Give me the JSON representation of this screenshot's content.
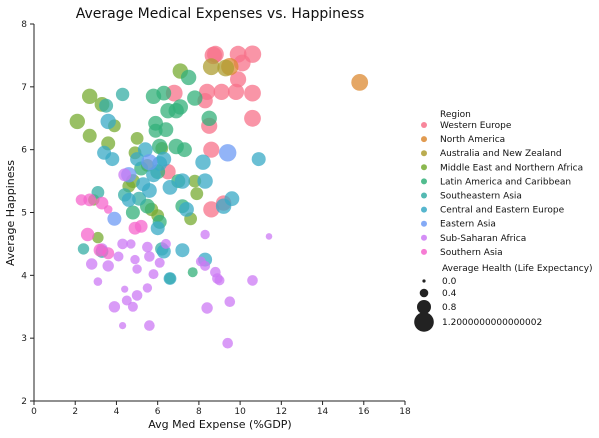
{
  "chart_data": {
    "type": "scatter",
    "title": "Average Medical Expenses vs. Happiness",
    "xlabel": "Avg Med Expense (%GDP)",
    "ylabel": "Average Happiness",
    "xlim": [
      0,
      18
    ],
    "ylim": [
      2,
      8
    ],
    "xticks": [
      "0",
      "2",
      "4",
      "6",
      "8",
      "10",
      "12",
      "14",
      "16",
      "18"
    ],
    "yticks": [
      "2",
      "3",
      "4",
      "5",
      "6",
      "7",
      "8"
    ],
    "grid": false,
    "legend": {
      "placement": "right",
      "hue_title": "Region",
      "size_title": "Average Health (Life Expectancy)",
      "size_entries": [
        {
          "label": "0.0",
          "value": 0.0
        },
        {
          "label": "0.4",
          "value": 0.4
        },
        {
          "label": "0.8",
          "value": 0.8
        },
        {
          "label": "1.2000000000000002",
          "value": 1.2
        }
      ]
    },
    "series": [
      {
        "name": "Western Europe",
        "color": "#f77189",
        "points": [
          [
            8.7,
            7.5,
            1.05
          ],
          [
            8.8,
            7.52,
            1.0
          ],
          [
            9.9,
            7.52,
            1.0
          ],
          [
            10.6,
            7.52,
            1.05
          ],
          [
            10.1,
            7.38,
            1.0
          ],
          [
            9.9,
            7.12,
            0.95
          ],
          [
            8.4,
            6.92,
            0.95
          ],
          [
            9.1,
            6.92,
            0.95
          ],
          [
            9.8,
            6.92,
            0.95
          ],
          [
            10.6,
            6.9,
            1.0
          ],
          [
            6.8,
            6.9,
            1.0
          ],
          [
            8.3,
            6.78,
            0.9
          ],
          [
            10.6,
            6.5,
            1.0
          ],
          [
            8.5,
            6.38,
            0.95
          ],
          [
            8.6,
            6.0,
            0.95
          ],
          [
            6.5,
            5.65,
            0.9
          ],
          [
            8.6,
            5.05,
            0.95
          ],
          [
            9.2,
            5.15,
            0.9
          ]
        ]
      },
      {
        "name": "North America",
        "color": "#dc8932",
        "points": [
          [
            15.8,
            7.07,
            1.0
          ],
          [
            9.5,
            7.32,
            1.05
          ]
        ]
      },
      {
        "name": "Australia and New Zealand",
        "color": "#ae9d31",
        "points": [
          [
            8.6,
            7.32,
            1.0
          ],
          [
            9.3,
            7.3,
            1.0
          ]
        ]
      },
      {
        "name": "Middle East and Northern Africa",
        "color": "#77ab31",
        "points": [
          [
            2.1,
            6.45,
            0.9
          ],
          [
            2.7,
            6.85,
            0.9
          ],
          [
            2.7,
            6.22,
            0.8
          ],
          [
            3.3,
            6.72,
            0.85
          ],
          [
            3.9,
            6.38,
            0.7
          ],
          [
            3.6,
            6.1,
            0.8
          ],
          [
            7.1,
            7.25,
            0.9
          ],
          [
            5.0,
            6.18,
            0.7
          ],
          [
            6.2,
            6.02,
            0.7
          ],
          [
            4.9,
            5.95,
            0.7
          ],
          [
            5.5,
            5.75,
            0.7
          ],
          [
            4.8,
            5.5,
            0.8
          ],
          [
            4.6,
            5.42,
            0.7
          ],
          [
            7.8,
            5.5,
            0.7
          ],
          [
            7.9,
            5.3,
            0.7
          ],
          [
            5.7,
            5.05,
            0.75
          ],
          [
            6.0,
            4.95,
            0.7
          ],
          [
            7.6,
            4.9,
            0.7
          ],
          [
            3.1,
            4.6,
            0.6
          ],
          [
            2.9,
            5.2,
            0.6
          ]
        ]
      },
      {
        "name": "Latin America and Caribbean",
        "color": "#33b07a",
        "points": [
          [
            7.5,
            7.15,
            0.9
          ],
          [
            6.9,
            6.62,
            0.9
          ],
          [
            6.5,
            6.62,
            0.9
          ],
          [
            7.1,
            6.68,
            0.9
          ],
          [
            5.8,
            6.85,
            0.9
          ],
          [
            6.3,
            6.9,
            0.85
          ],
          [
            7.8,
            6.82,
            0.9
          ],
          [
            5.9,
            6.42,
            0.85
          ],
          [
            5.9,
            6.3,
            0.8
          ],
          [
            6.4,
            6.32,
            0.85
          ],
          [
            6.1,
            6.05,
            0.9
          ],
          [
            6.9,
            6.05,
            0.9
          ],
          [
            7.3,
            6.0,
            0.85
          ],
          [
            5.2,
            5.7,
            0.8
          ],
          [
            8.5,
            6.5,
            0.9
          ],
          [
            6.0,
            5.65,
            0.85
          ],
          [
            7.0,
            5.5,
            0.8
          ],
          [
            7.2,
            5.1,
            0.8
          ],
          [
            5.5,
            5.1,
            0.85
          ],
          [
            6.1,
            4.85,
            0.8
          ],
          [
            4.8,
            5.0,
            0.8
          ],
          [
            6.6,
            3.95,
            0.6
          ],
          [
            7.7,
            4.05,
            0.5
          ]
        ]
      },
      {
        "name": "Southeastern Asia",
        "color": "#36ada4",
        "points": [
          [
            3.5,
            6.7,
            0.8
          ],
          [
            4.3,
            6.88,
            0.75
          ],
          [
            3.1,
            5.32,
            0.7
          ],
          [
            4.4,
            5.28,
            0.75
          ],
          [
            5.1,
            5.22,
            0.8
          ],
          [
            2.4,
            4.42,
            0.6
          ],
          [
            6.2,
            4.42,
            0.75
          ],
          [
            3.3,
            4.38,
            0.7
          ]
        ]
      },
      {
        "name": "Central and Eastern Europe",
        "color": "#38a9c5",
        "points": [
          [
            3.6,
            6.45,
            0.9
          ],
          [
            3.4,
            5.95,
            0.8
          ],
          [
            3.8,
            5.85,
            0.8
          ],
          [
            5.4,
            6.0,
            0.85
          ],
          [
            5.0,
            5.85,
            0.8
          ],
          [
            6.3,
            5.85,
            0.85
          ],
          [
            6.1,
            5.78,
            0.85
          ],
          [
            5.8,
            5.6,
            0.85
          ],
          [
            7.2,
            5.5,
            0.9
          ],
          [
            8.2,
            5.8,
            0.9
          ],
          [
            6.6,
            5.4,
            0.85
          ],
          [
            5.3,
            5.45,
            0.8
          ],
          [
            5.6,
            5.35,
            0.85
          ],
          [
            4.6,
            5.2,
            0.8
          ],
          [
            7.4,
            5.05,
            0.85
          ],
          [
            8.3,
            5.5,
            0.9
          ],
          [
            9.2,
            5.1,
            0.9
          ],
          [
            9.6,
            5.22,
            0.85
          ],
          [
            10.9,
            5.85,
            0.8
          ],
          [
            7.2,
            4.4,
            0.8
          ],
          [
            6.3,
            4.38,
            0.8
          ],
          [
            6.0,
            4.75,
            0.8
          ],
          [
            8.3,
            4.25,
            0.8
          ],
          [
            6.6,
            3.95,
            0.7
          ]
        ]
      },
      {
        "name": "Eastern Asia",
        "color": "#6e9bf4",
        "points": [
          [
            9.4,
            5.95,
            1.05
          ],
          [
            5.6,
            5.8,
            0.95
          ],
          [
            4.6,
            5.6,
            0.9
          ],
          [
            3.9,
            4.9,
            0.8
          ]
        ]
      },
      {
        "name": "Sub-Saharan Africa",
        "color": "#cc7af4",
        "points": [
          [
            4.4,
            5.6,
            0.7
          ],
          [
            3.3,
            4.42,
            0.6
          ],
          [
            4.3,
            4.5,
            0.55
          ],
          [
            4.7,
            4.5,
            0.45
          ],
          [
            5.5,
            4.45,
            0.55
          ],
          [
            6.4,
            4.5,
            0.5
          ],
          [
            4.1,
            4.3,
            0.5
          ],
          [
            4.9,
            4.25,
            0.45
          ],
          [
            5.6,
            4.3,
            0.55
          ],
          [
            6.1,
            4.2,
            0.5
          ],
          [
            3.6,
            4.15,
            0.6
          ],
          [
            5.8,
            4.02,
            0.5
          ],
          [
            5.0,
            4.1,
            0.45
          ],
          [
            8.8,
            4.05,
            0.55
          ],
          [
            8.1,
            4.22,
            0.5
          ],
          [
            8.3,
            4.15,
            0.5
          ],
          [
            8.9,
            3.95,
            0.55
          ],
          [
            9.0,
            3.92,
            0.5
          ],
          [
            10.6,
            3.92,
            0.55
          ],
          [
            5.5,
            3.8,
            0.45
          ],
          [
            5.0,
            3.68,
            0.55
          ],
          [
            4.5,
            3.6,
            0.5
          ],
          [
            3.9,
            3.5,
            0.6
          ],
          [
            4.8,
            3.5,
            0.5
          ],
          [
            8.4,
            3.48,
            0.6
          ],
          [
            9.5,
            3.58,
            0.55
          ],
          [
            5.6,
            3.2,
            0.55
          ],
          [
            4.3,
            3.2,
            0.3
          ],
          [
            9.4,
            2.92,
            0.55
          ],
          [
            4.4,
            3.78,
            0.3
          ],
          [
            8.3,
            4.65,
            0.45
          ],
          [
            3.1,
            3.9,
            0.4
          ],
          [
            11.4,
            4.62,
            0.25
          ],
          [
            2.8,
            4.18,
            0.6
          ]
        ]
      },
      {
        "name": "Southern Asia",
        "color": "#f565cc",
        "points": [
          [
            2.7,
            5.2,
            0.7
          ],
          [
            3.3,
            5.15,
            0.7
          ],
          [
            3.6,
            5.05,
            0.4
          ],
          [
            2.6,
            4.65,
            0.75
          ],
          [
            3.6,
            4.35,
            0.65
          ],
          [
            3.2,
            4.4,
            0.7
          ],
          [
            4.9,
            4.75,
            0.7
          ],
          [
            5.2,
            4.78,
            0.7
          ],
          [
            2.3,
            5.2,
            0.6
          ]
        ]
      }
    ]
  }
}
